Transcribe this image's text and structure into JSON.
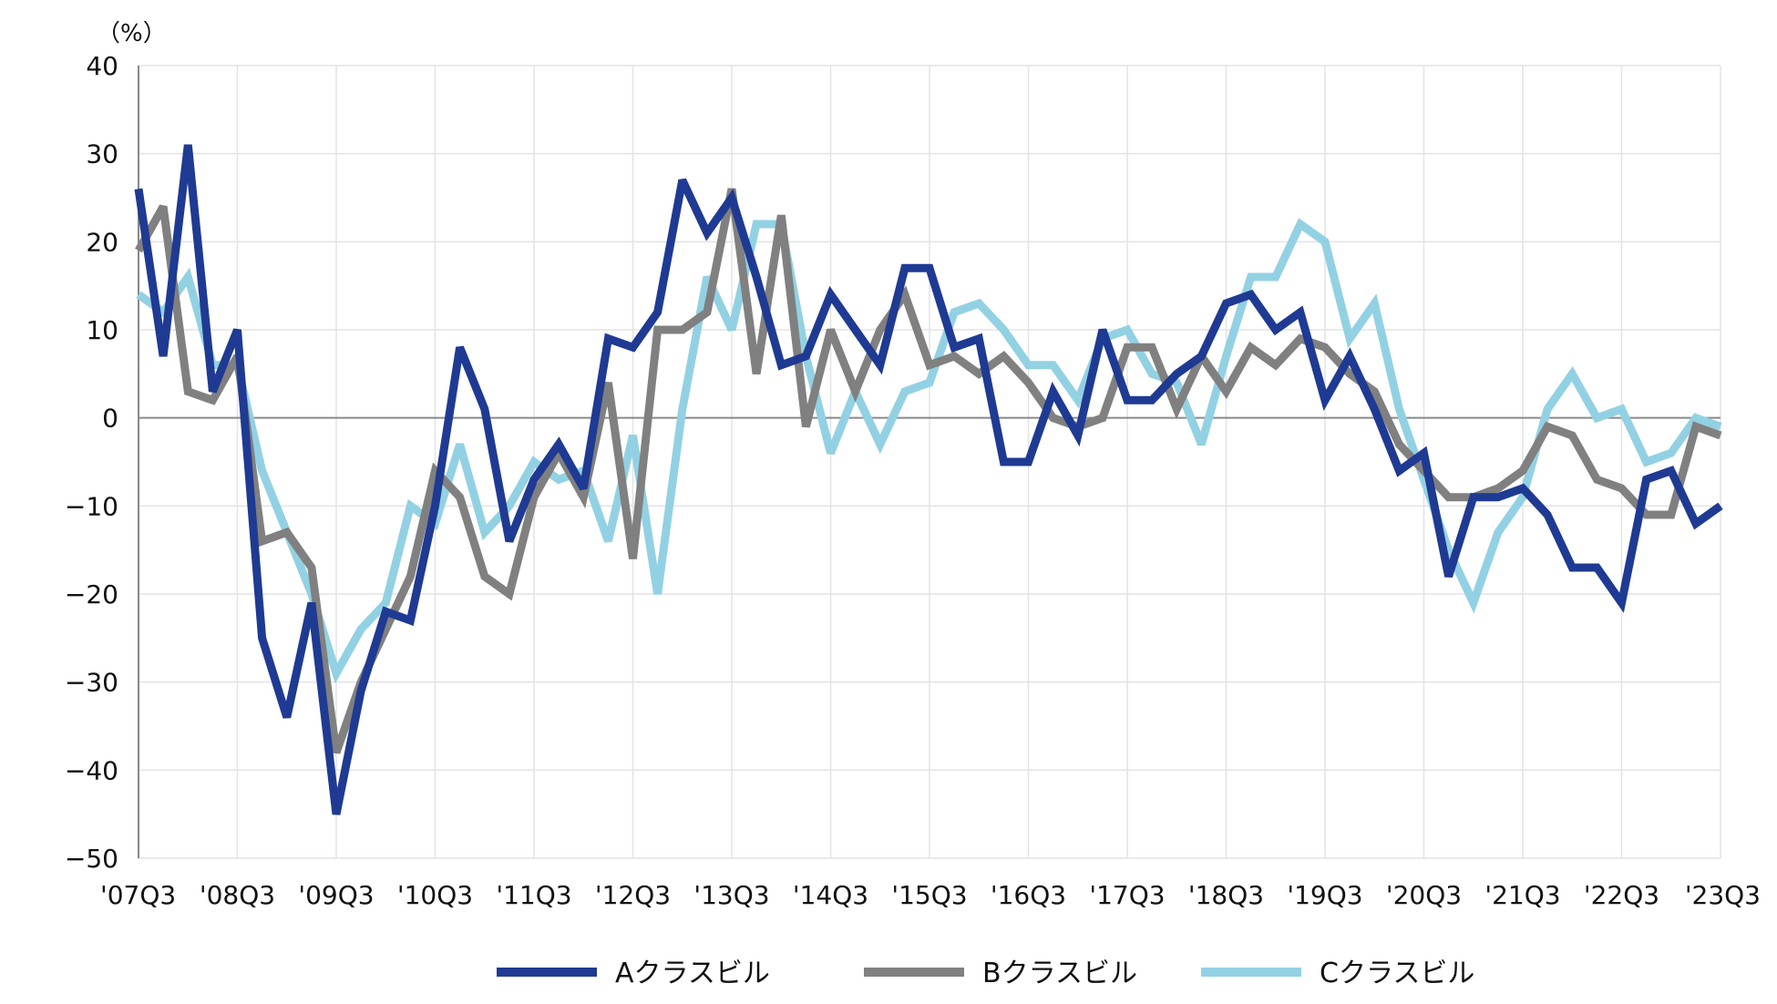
{
  "chart_data": {
    "type": "line",
    "unit_label": "（%）",
    "ylim": [
      -50,
      40
    ],
    "y_ticks": [
      40,
      30,
      20,
      10,
      0,
      -10,
      -20,
      -30,
      -40,
      -50
    ],
    "y_tick_labels": [
      "40",
      "30",
      "20",
      "10",
      "0",
      "−10",
      "−20",
      "−30",
      "−40",
      "−50"
    ],
    "x_tick_labels": [
      "'07Q3",
      "'08Q3",
      "'09Q3",
      "'10Q3",
      "'11Q3",
      "'12Q3",
      "'13Q3",
      "'14Q3",
      "'15Q3",
      "'16Q3",
      "'17Q3",
      "'18Q3",
      "'19Q3",
      "'20Q3",
      "'21Q3",
      "'22Q3",
      "'23Q3"
    ],
    "grid": true,
    "legend_position": "bottom",
    "series": [
      {
        "name": "Aクラスビル",
        "color": "#1f3a93",
        "values": [
          26,
          7,
          31,
          3,
          10,
          -25,
          -34,
          -21,
          -45,
          -31,
          -22,
          -23,
          -10,
          8,
          1,
          -14,
          -7,
          -3,
          -8,
          9,
          8,
          12,
          27,
          21,
          25,
          16,
          6,
          7,
          14,
          10,
          6,
          17,
          17,
          8,
          9,
          -5,
          -5,
          3,
          -2,
          10,
          2,
          2,
          5,
          7,
          13,
          14,
          10,
          12,
          2,
          7,
          1,
          -6,
          -4,
          -18,
          -9,
          -9,
          -8,
          -11,
          -17,
          -17,
          -21,
          -7,
          -6,
          -12,
          -10
        ]
      },
      {
        "name": "Bクラスビル",
        "color": "#808080",
        "values": [
          19,
          24,
          3,
          2,
          7,
          -14,
          -13,
          -17,
          -38,
          -30,
          -24,
          -18,
          -6,
          -9,
          -18,
          -20,
          -9,
          -4,
          -9,
          4,
          -16,
          10,
          10,
          12,
          26,
          5,
          23,
          -1,
          10,
          3,
          10,
          14,
          6,
          7,
          5,
          7,
          4,
          0,
          -1,
          0,
          8,
          8,
          1,
          7,
          3,
          8,
          6,
          9,
          8,
          5,
          3,
          -3,
          -6,
          -9,
          -9,
          -8,
          -6,
          -1,
          -2,
          -7,
          -8,
          -11,
          -11,
          -1,
          -2
        ]
      },
      {
        "name": "Cクラスビル",
        "color": "#92d1e3",
        "values": [
          14,
          12,
          16,
          6,
          6,
          -6,
          -13,
          -20,
          -29,
          -24,
          -21,
          -10,
          -12,
          -3,
          -13,
          -10,
          -5,
          -7,
          -6,
          -14,
          -2,
          -20,
          1,
          16,
          10,
          22,
          22,
          7,
          -4,
          3,
          -3,
          3,
          4,
          12,
          13,
          10,
          6,
          6,
          2,
          9,
          10,
          5,
          4,
          -3,
          7,
          16,
          16,
          22,
          20,
          9,
          13,
          1,
          -7,
          -15,
          -21,
          -13,
          -9,
          1,
          5,
          0,
          1,
          -5,
          -4,
          0,
          -1
        ]
      }
    ]
  }
}
